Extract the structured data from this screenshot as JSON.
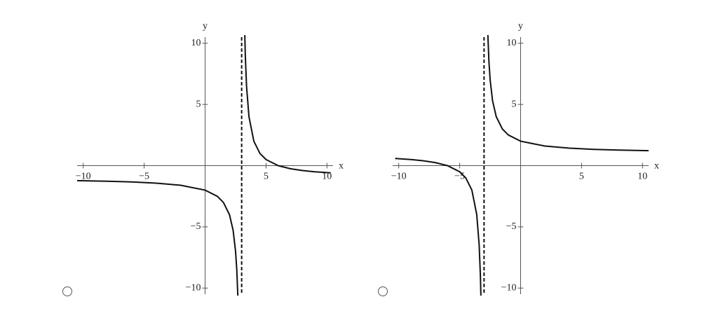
{
  "chart_data": [
    {
      "type": "line",
      "xlabel": "x",
      "ylabel": "y",
      "xlim": [
        -10.5,
        10.5
      ],
      "ylim": [
        -10.5,
        10.5
      ],
      "xticks": [
        {
          "value": -10,
          "label": "−10"
        },
        {
          "value": -5,
          "label": "−5"
        },
        5,
        10
      ],
      "yticks": [
        {
          "value": -10,
          "label": "−10"
        },
        {
          "value": -5,
          "label": "−5"
        },
        5,
        10
      ],
      "asymptote_x": 3,
      "x": [
        -10.5,
        -8,
        -6,
        -4,
        -2,
        0,
        1,
        1.5,
        2,
        2.3,
        2.5,
        2.6,
        2.7,
        null,
        3.25,
        3.3,
        3.4,
        3.6,
        4,
        4.5,
        5,
        6,
        7,
        8,
        9,
        10.3
      ],
      "series": [
        {
          "color": "#111111",
          "values": [
            -1.222,
            -1.273,
            -1.333,
            -1.429,
            -1.6,
            -2,
            -2.5,
            -3,
            -4,
            -5.286,
            -7,
            -8.5,
            -11,
            null,
            11,
            9,
            6.5,
            4,
            2,
            1,
            0.5,
            0,
            -0.25,
            -0.4,
            -0.5,
            -0.589
          ]
        }
      ]
    },
    {
      "type": "line",
      "xlabel": "x",
      "ylabel": "y",
      "xlim": [
        -10.5,
        10.5
      ],
      "ylim": [
        -10.5,
        10.5
      ],
      "xticks": [
        {
          "value": -10,
          "label": "−10"
        },
        {
          "value": -5,
          "label": "−5"
        },
        5,
        10
      ],
      "yticks": [
        {
          "value": -10,
          "label": "−10"
        },
        {
          "value": -5,
          "label": "−5"
        },
        5,
        10
      ],
      "asymptote_x": -3,
      "x": [
        -10.3,
        -9,
        -8,
        -7,
        -6,
        -5,
        -4.5,
        -4,
        -3.6,
        -3.4,
        -3.3,
        -3.25,
        null,
        -2.7,
        -2.6,
        -2.5,
        -2.3,
        -2,
        -1.5,
        -1,
        0,
        2,
        4,
        6,
        8,
        10.5
      ],
      "series": [
        {
          "color": "#111111",
          "values": [
            0.589,
            0.5,
            0.4,
            0.25,
            0,
            -0.5,
            -1,
            -2,
            -4,
            -6.5,
            -9,
            -11,
            null,
            11,
            8.5,
            7,
            5.286,
            4,
            3,
            2.5,
            2,
            1.6,
            1.429,
            1.333,
            1.273,
            1.222
          ]
        }
      ]
    }
  ]
}
